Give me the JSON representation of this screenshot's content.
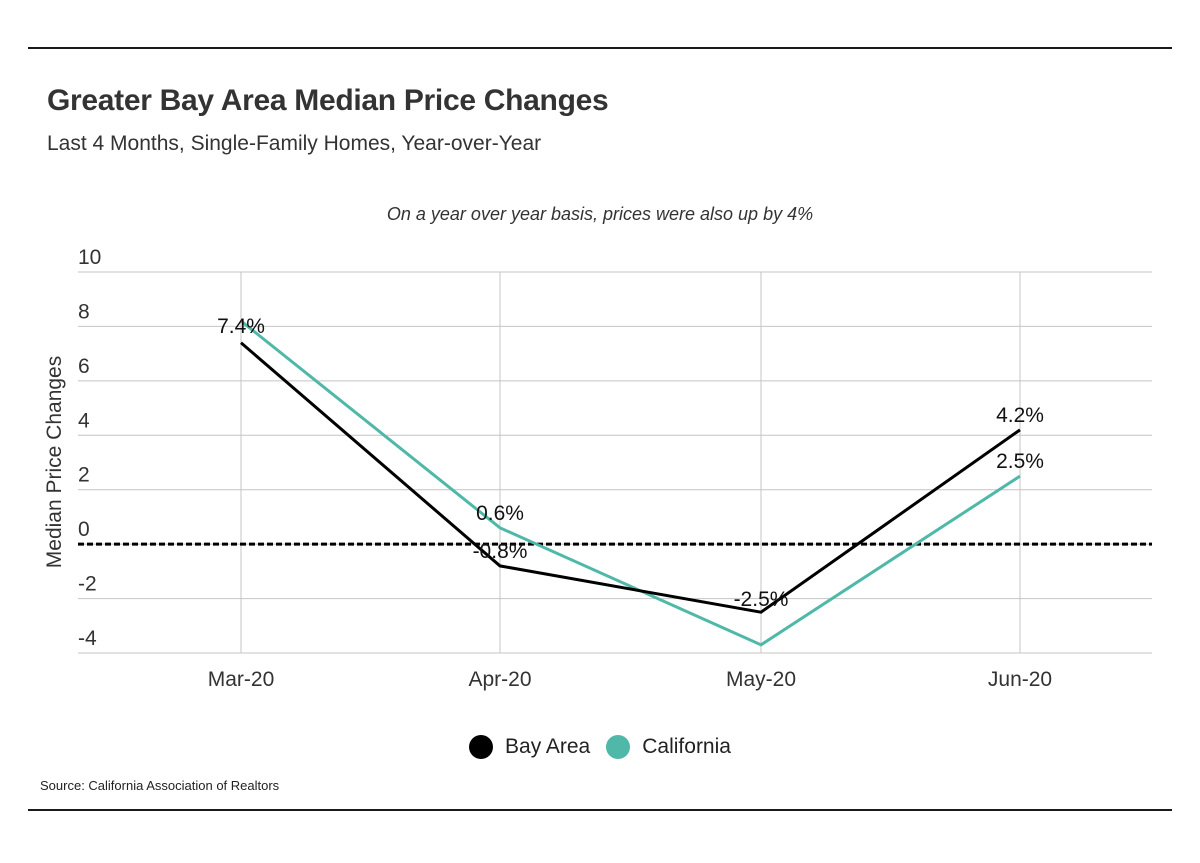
{
  "page": {
    "title": "Greater Bay Area Median Price Changes",
    "subtitle": "Last 4 Months, Single-Family Homes, Year-over-Year",
    "source": "Source:  California Association of Realtors"
  },
  "chart_data": {
    "type": "line",
    "annotation": "On a year over year basis, prices were also up by 4%",
    "categories": [
      "Mar-20",
      "Apr-20",
      "May-20",
      "Jun-20"
    ],
    "ylabel": "Median Price Changes",
    "xlabel": "",
    "ylim": [
      -4,
      10
    ],
    "yticks": [
      10,
      8,
      6,
      4,
      2,
      0,
      -2,
      -4
    ],
    "reference_line": 0,
    "grid": true,
    "legend_position": "bottom",
    "series": [
      {
        "name": "Bay Area",
        "color": "#000000",
        "values": [
          7.4,
          -0.8,
          -2.5,
          4.2
        ],
        "labels": [
          "7.4%",
          "-0.8%",
          "-2.5%",
          "4.2%"
        ]
      },
      {
        "name": "California",
        "color": "#4fb8a8",
        "values": [
          8.2,
          0.6,
          -3.7,
          2.5
        ],
        "labels": [
          "",
          "0.6%",
          "",
          "2.5%"
        ]
      }
    ]
  }
}
